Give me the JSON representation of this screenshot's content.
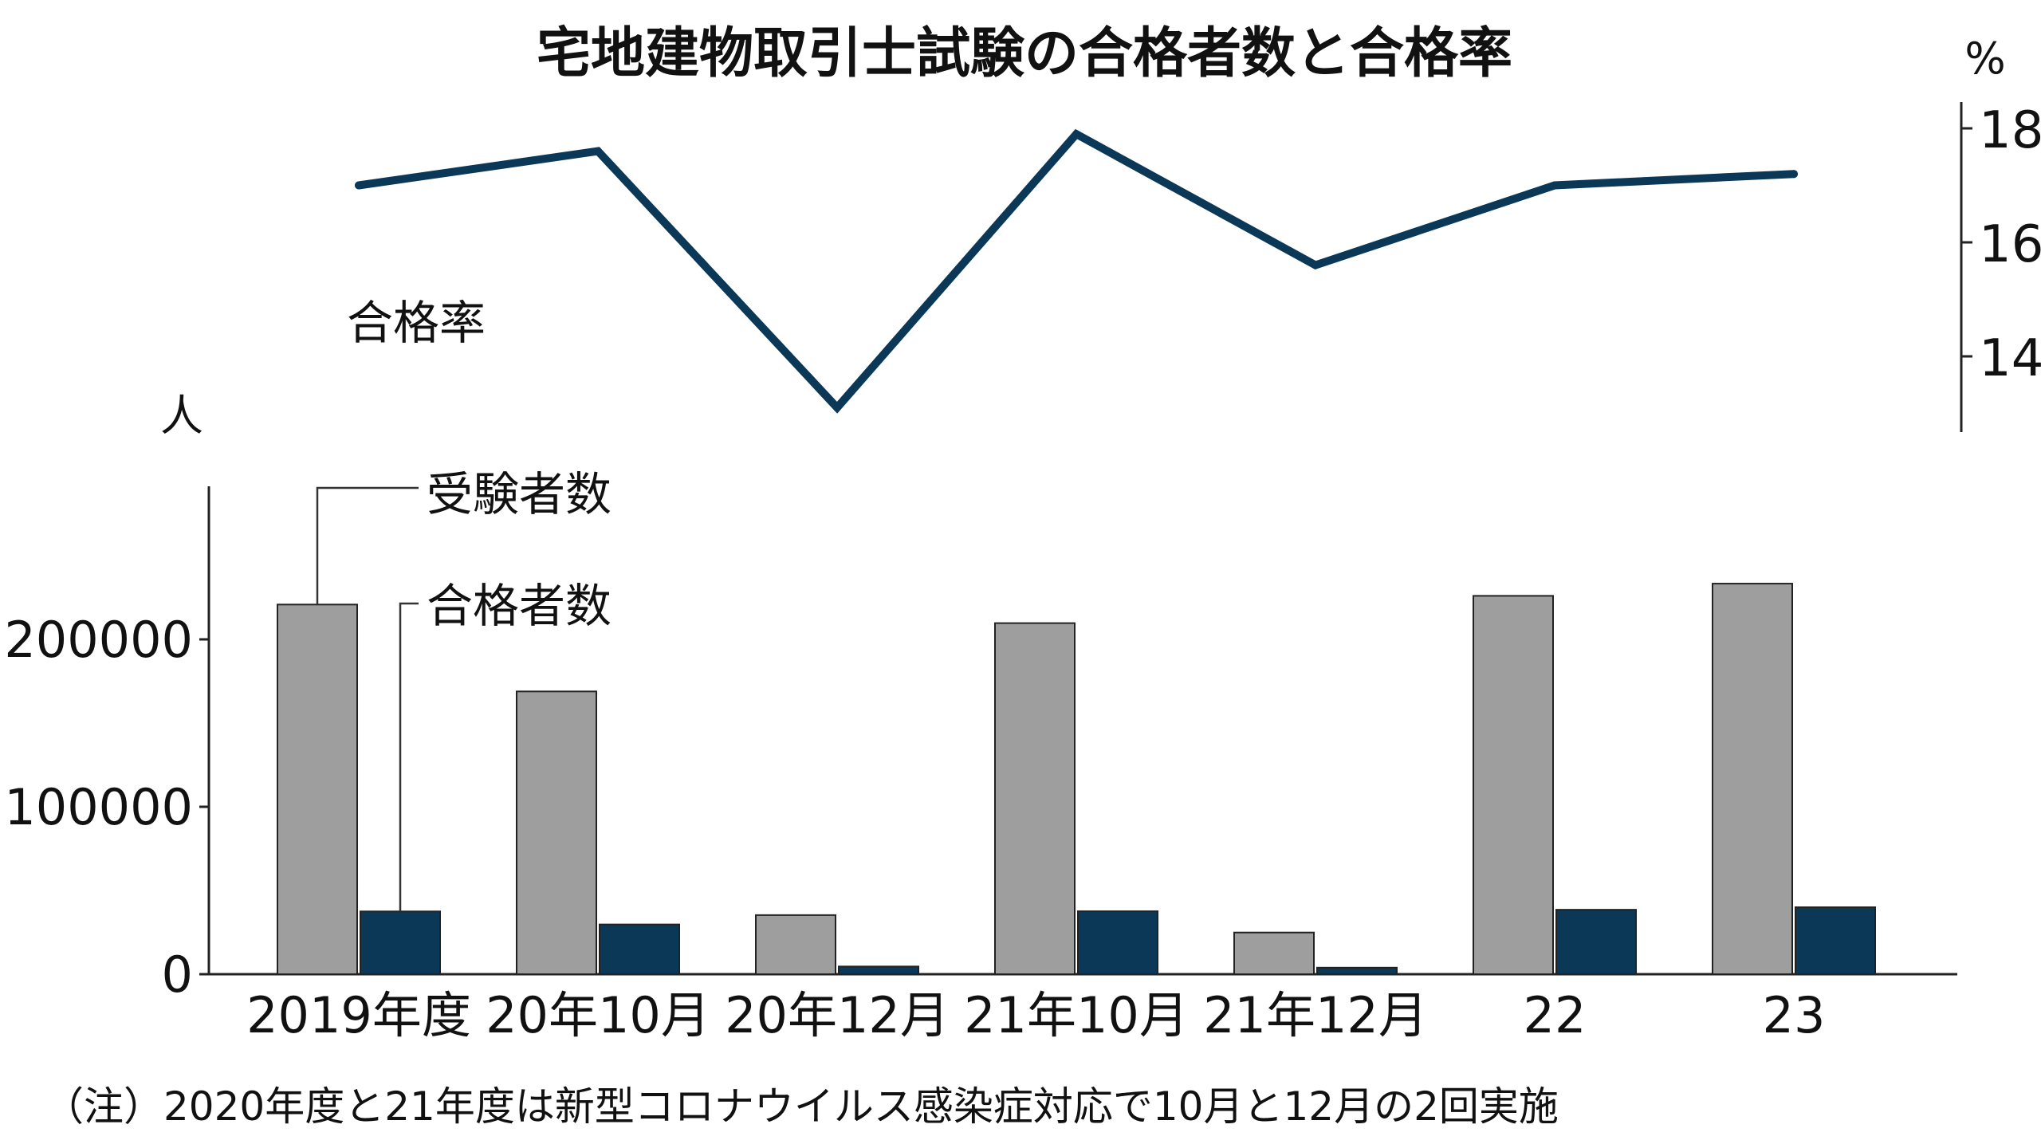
{
  "title": "宅地建物取引士試験の合格者数と合格率",
  "note": "（注）2020年度と21年度は新型コロナウイルス感染症対応で10月と12月の2回実施",
  "legend": {
    "examinees": "受験者数",
    "passers": "合格者数",
    "pass_rate": "合格率"
  },
  "colors": {
    "examinees": "#9e9e9e",
    "passers": "#0c3858",
    "pass_rate_line": "#0c3858",
    "axis": "#222222"
  },
  "chart_data": [
    {
      "type": "line",
      "categories": [
        "2019年度",
        "20年10月",
        "20年12月",
        "21年10月",
        "21年12月",
        "22",
        "23"
      ],
      "series": [
        {
          "name": "合格率",
          "values": [
            17.0,
            17.6,
            13.1,
            17.9,
            15.6,
            17.0,
            17.2
          ]
        }
      ],
      "y_unit": "%",
      "y_ticks": [
        "14",
        "16",
        "18"
      ],
      "ylim": [
        12.7,
        18.3
      ],
      "axis_position": "right",
      "grid": false
    },
    {
      "type": "bar",
      "categories": [
        "2019年度",
        "20年10月",
        "20年12月",
        "21年10月",
        "21年12月",
        "22",
        "23"
      ],
      "series": [
        {
          "name": "受験者数",
          "values": [
            220800,
            168900,
            35300,
            209700,
            24900,
            226000,
            233300
          ]
        },
        {
          "name": "合格者数",
          "values": [
            37500,
            29700,
            4600,
            37600,
            3900,
            38500,
            40000
          ]
        }
      ],
      "y_unit": "人",
      "y_ticks": [
        "0",
        "100000",
        "200000"
      ],
      "ylim": [
        0,
        290000
      ],
      "axis_position": "left",
      "grid": false
    }
  ]
}
